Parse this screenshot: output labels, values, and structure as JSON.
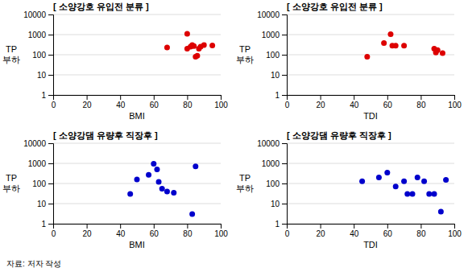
{
  "chart_data": [
    {
      "type": "scatter",
      "title": "[ 소양강호 유입전 분류 ]",
      "x_label": "BMI",
      "y_label": "TP\n부하",
      "x": [
        68,
        80,
        80,
        82,
        83,
        84,
        85,
        86,
        87,
        88,
        90,
        95
      ],
      "values": [
        230,
        1100,
        200,
        250,
        300,
        270,
        80,
        90,
        200,
        250,
        300,
        290
      ],
      "color": "#dd0000",
      "log": "y",
      "grid": true,
      "xlim": [
        0,
        100
      ],
      "xticks": [
        0,
        20,
        40,
        60,
        80,
        100
      ],
      "ylim": [
        1,
        10000
      ],
      "yticks": [
        1,
        10,
        100,
        1000,
        10000
      ]
    },
    {
      "type": "scatter",
      "title": "[ 소양강호 유입전 분류 ]",
      "x_label": "TDI",
      "y_label": "TP\n부하",
      "x": [
        48,
        58,
        62,
        63,
        65,
        70,
        88,
        89,
        90,
        93
      ],
      "values": [
        80,
        380,
        1050,
        280,
        280,
        280,
        200,
        130,
        170,
        120
      ],
      "color": "#dd0000",
      "log": "y",
      "grid": true,
      "xlim": [
        0,
        100
      ],
      "xticks": [
        0,
        20,
        40,
        60,
        80,
        100
      ],
      "ylim": [
        1,
        10000
      ],
      "yticks": [
        1,
        10,
        100,
        1000,
        10000
      ]
    },
    {
      "type": "scatter",
      "title": "[ 소양강댐 유량후 직장후 ]",
      "x_label": "BMI",
      "y_label": "TP\n부하",
      "x": [
        46,
        50,
        57,
        60,
        62,
        63,
        65,
        68,
        72,
        83,
        85
      ],
      "values": [
        30,
        160,
        270,
        950,
        500,
        120,
        55,
        40,
        35,
        3,
        700
      ],
      "color": "#0000cc",
      "log": "y",
      "grid": true,
      "xlim": [
        0,
        100
      ],
      "xticks": [
        0,
        20,
        40,
        60,
        80,
        100
      ],
      "ylim": [
        1,
        10000
      ],
      "yticks": [
        1,
        10,
        100,
        1000,
        10000
      ]
    },
    {
      "type": "scatter",
      "title": "[ 소양강댐 유량후 직장후 ]",
      "x_label": "TDI",
      "y_label": "TP\n부하",
      "x": [
        45,
        55,
        60,
        65,
        70,
        72,
        75,
        78,
        82,
        85,
        88,
        92,
        95
      ],
      "values": [
        130,
        200,
        350,
        70,
        130,
        30,
        30,
        200,
        130,
        30,
        30,
        4,
        150
      ],
      "color": "#0000cc",
      "log": "y",
      "grid": true,
      "xlim": [
        0,
        100
      ],
      "xticks": [
        0,
        20,
        40,
        60,
        80,
        100
      ],
      "ylim": [
        1,
        10000
      ],
      "yticks": [
        1,
        10,
        100,
        1000,
        10000
      ]
    }
  ],
  "source": "자료: 저자 작성"
}
